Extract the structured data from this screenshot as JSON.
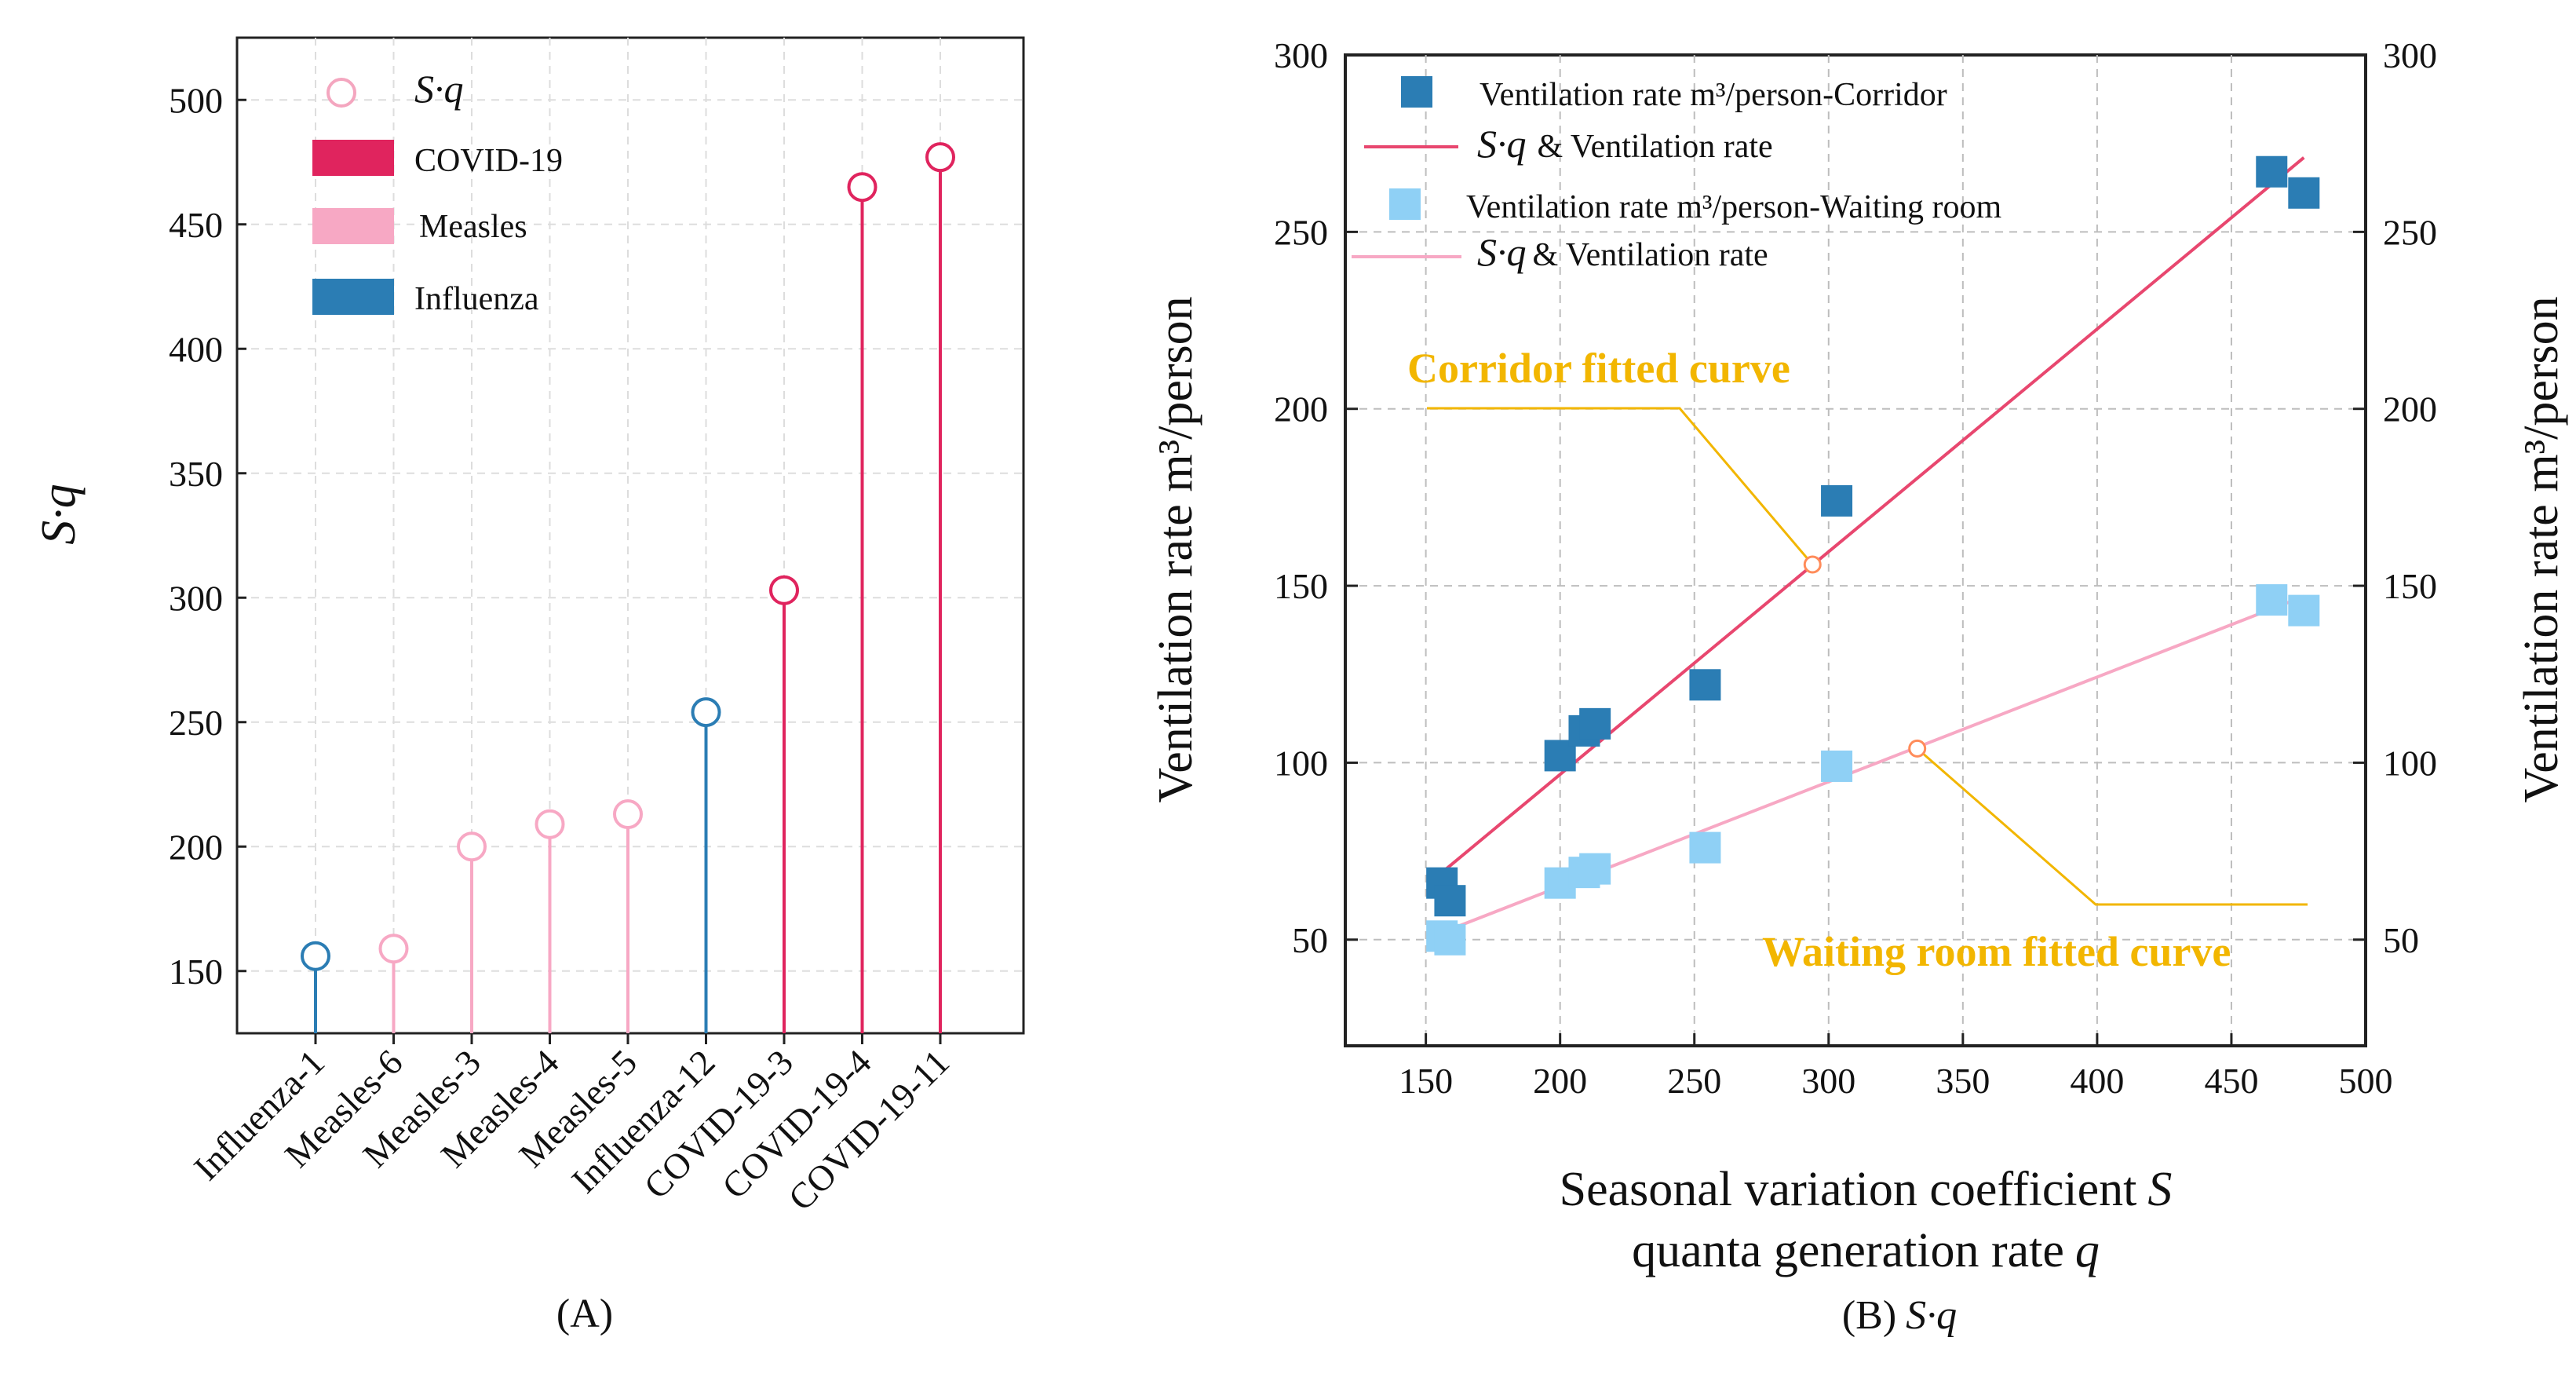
{
  "chart_data": [
    {
      "type": "lollipop",
      "caption": "(A)",
      "ylabel": "S·q",
      "ylim": [
        125,
        525
      ],
      "yticks": [
        150,
        200,
        250,
        300,
        350,
        400,
        450,
        500
      ],
      "grid": true,
      "categories": [
        "Influenza-1",
        "Measles-6",
        "Measles-3",
        "Measles-4",
        "Measles-5",
        "Influenza-12",
        "COVID-19-3",
        "COVID-19-4",
        "COVID-19-11"
      ],
      "values": [
        156,
        159,
        200,
        209,
        213,
        254,
        303,
        465,
        477
      ],
      "groups": [
        "Influenza",
        "Measles",
        "Measles",
        "Measles",
        "Measles",
        "Influenza",
        "COVID-19",
        "COVID-19",
        "COVID-19"
      ],
      "legend": [
        {
          "label": "S·q",
          "kind": "circle",
          "color": "#f4a6bf"
        },
        {
          "label": "COVID-19",
          "kind": "bar",
          "color": "#e0245e"
        },
        {
          "label": "Measles",
          "kind": "bar",
          "color": "#f7a8c4"
        },
        {
          "label": "Influenza",
          "kind": "bar",
          "color": "#2b7db4"
        }
      ],
      "colors": {
        "COVID-19": "#e0245e",
        "Measles": "#f7a8c4",
        "Influenza": "#2b7db4"
      }
    },
    {
      "type": "scatter",
      "caption_prefix": "(B)",
      "caption_symbol": "S·q",
      "xlabel_line1": "Seasonal variation coefficient",
      "xlabel_line1_symbol": "S",
      "xlabel_line2": "quanta generation rate",
      "xlabel_line2_symbol": "q",
      "ylabel_left": "Ventilation rate m³/person",
      "ylabel_right": "Ventilation rate m³/person",
      "xlim": [
        120,
        500
      ],
      "ylim": [
        20,
        300
      ],
      "xticks": [
        150,
        200,
        250,
        300,
        350,
        400,
        450,
        500
      ],
      "yticks": [
        50,
        100,
        150,
        200,
        250,
        300
      ],
      "grid": true,
      "series": [
        {
          "name": "Ventilation rate m³/person-Corridor",
          "kind": "square",
          "color": "#2b7db4",
          "x": [
            156,
            159,
            200,
            209,
            213,
            254,
            303,
            465,
            477
          ],
          "y": [
            66,
            61,
            102,
            109,
            111,
            122,
            174,
            267,
            261
          ]
        },
        {
          "name": "Ventilation rate m³/person-Waiting room",
          "kind": "square",
          "color": "#8fd0f5",
          "x": [
            156,
            159,
            200,
            209,
            213,
            254,
            303,
            465,
            477
          ],
          "y": [
            51,
            50,
            66,
            69,
            70,
            76,
            99,
            146,
            143
          ]
        }
      ],
      "fits": [
        {
          "legend_symbol": "S·q",
          "legend_text": "& Ventilation rate",
          "color": "#e8476f",
          "x": [
            156,
            477
          ],
          "y": [
            69,
            271
          ]
        },
        {
          "legend_symbol": "S·q",
          "legend_text": "& Ventilation rate",
          "color": "#f7a8c4",
          "x": [
            156,
            477
          ],
          "y": [
            52,
            147
          ]
        }
      ],
      "annotations": [
        {
          "text": "Corridor fitted curve",
          "color": "#f2b600",
          "point": [
            294,
            156
          ]
        },
        {
          "text": "Waiting room fitted curve",
          "color": "#f2b600",
          "point": [
            333,
            104
          ]
        }
      ]
    }
  ]
}
